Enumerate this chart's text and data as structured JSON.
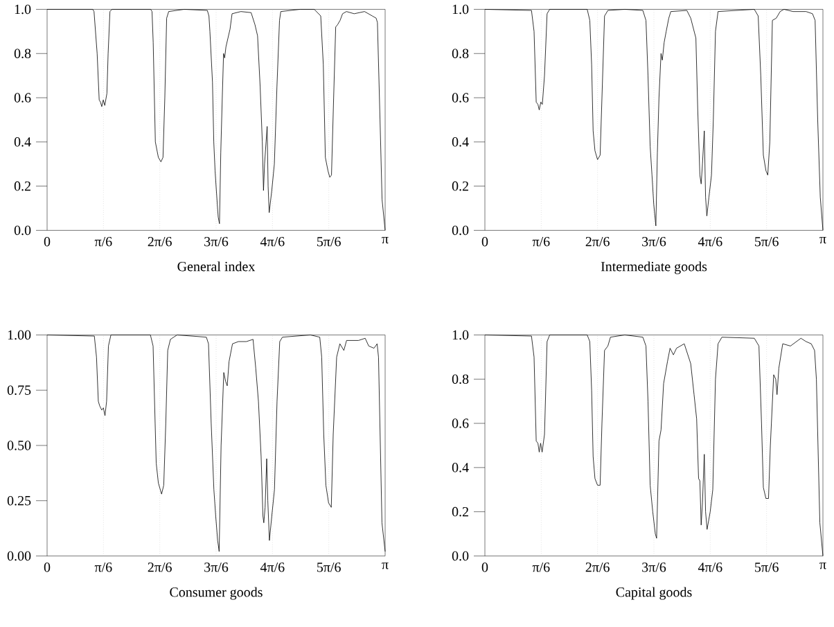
{
  "chart_data": [
    {
      "type": "line",
      "title": "General index",
      "color": "#000000",
      "x": [
        0,
        0.424,
        0.436,
        0.465,
        0.484,
        0.496,
        0.508,
        0.522,
        0.536,
        0.556,
        0.567,
        0.584,
        0.603,
        0.963,
        0.975,
        0.986,
        1.006,
        1.034,
        1.058,
        1.077,
        1.094,
        1.111,
        1.13,
        1.274,
        1.489,
        1.504,
        1.513,
        1.537,
        1.549,
        1.561,
        1.573,
        1.59,
        1.602,
        1.614,
        1.628,
        1.64,
        1.65,
        1.662,
        1.681,
        1.7,
        1.719,
        1.801,
        1.896,
        1.932,
        1.956,
        1.98,
        2.0,
        2.011,
        2.021,
        2.035,
        2.045,
        2.054,
        2.064,
        2.088,
        2.112,
        2.136,
        2.16,
        2.172,
        2.351,
        2.483,
        2.543,
        2.567,
        2.586,
        2.61,
        2.627,
        2.643,
        2.663,
        2.682,
        2.699,
        2.723,
        2.746,
        2.782,
        2.854,
        2.95,
        3.022,
        3.058,
        3.07,
        3.094,
        3.113,
        3.1416
      ],
      "values": [
        1,
        1,
        0.99,
        0.8,
        0.59,
        0.58,
        0.56,
        0.59,
        0.565,
        0.62,
        0.8,
        0.99,
        1,
        1,
        0.99,
        0.85,
        0.4,
        0.33,
        0.31,
        0.33,
        0.6,
        0.96,
        0.99,
        1,
        0.995,
        0.97,
        0.9,
        0.67,
        0.4,
        0.27,
        0.18,
        0.06,
        0.03,
        0.35,
        0.6,
        0.8,
        0.78,
        0.83,
        0.87,
        0.91,
        0.98,
        0.99,
        0.985,
        0.93,
        0.88,
        0.65,
        0.4,
        0.18,
        0.3,
        0.4,
        0.47,
        0.2,
        0.08,
        0.18,
        0.3,
        0.65,
        0.95,
        0.99,
        1,
        1,
        0.97,
        0.75,
        0.33,
        0.27,
        0.24,
        0.25,
        0.6,
        0.92,
        0.93,
        0.95,
        0.98,
        0.99,
        0.98,
        0.99,
        0.97,
        0.96,
        0.94,
        0.5,
        0.14,
        0
      ],
      "xlim": [
        0,
        3.1416
      ],
      "xticks": [
        0,
        {
          "value": 0.5236,
          "label": "π/6"
        },
        {
          "value": 1.0472,
          "label": "2π/6"
        },
        {
          "value": 1.5708,
          "label": "3π/6"
        },
        {
          "value": 2.0944,
          "label": "4π/6"
        },
        {
          "value": 2.618,
          "label": "5π/6"
        },
        {
          "value": 3.1416,
          "label": "π"
        }
      ],
      "ylim": [
        0,
        1
      ],
      "yticks": [
        {
          "value": 0,
          "label": "0.0"
        },
        0.2,
        0.4,
        0.6,
        0.8,
        {
          "value": 1,
          "label": "1.0"
        }
      ],
      "ref_lines": [
        {
          "axis": "x",
          "value": 0.5236,
          "color": "#999999",
          "line_style": "dotted"
        },
        {
          "axis": "x",
          "value": 1.0472,
          "color": "#999999",
          "line_style": "dotted"
        },
        {
          "axis": "x",
          "value": 1.5708,
          "color": "#999999",
          "line_style": "dotted"
        },
        {
          "axis": "x",
          "value": 2.0944,
          "color": "#999999",
          "line_style": "dotted"
        },
        {
          "axis": "x",
          "value": 2.618,
          "color": "#999999",
          "line_style": "dotted"
        }
      ]
    },
    {
      "type": "line",
      "title": "Intermediate goods",
      "color": "#000000",
      "x": [
        0,
        0.433,
        0.457,
        0.477,
        0.493,
        0.505,
        0.52,
        0.534,
        0.554,
        0.578,
        0.602,
        0.951,
        0.975,
        0.992,
        1.006,
        1.023,
        1.047,
        1.071,
        1.088,
        1.112,
        1.143,
        1.3,
        1.468,
        1.497,
        1.516,
        1.536,
        1.553,
        1.569,
        1.589,
        1.603,
        1.618,
        1.637,
        1.649,
        1.666,
        1.685,
        1.709,
        1.728,
        1.877,
        1.913,
        1.961,
        1.978,
        1.998,
        2.01,
        2.022,
        2.039,
        2.051,
        2.063,
        2.082,
        2.106,
        2.123,
        2.143,
        2.167,
        2.504,
        2.54,
        2.564,
        2.588,
        2.612,
        2.629,
        2.648,
        2.672,
        2.708,
        2.744,
        2.78,
        2.864,
        2.985,
        3.045,
        3.069,
        3.093,
        3.117,
        3.1416
      ],
      "values": [
        1,
        0.995,
        0.9,
        0.58,
        0.57,
        0.545,
        0.58,
        0.57,
        0.7,
        0.98,
        1,
        1,
        0.95,
        0.75,
        0.45,
        0.36,
        0.32,
        0.34,
        0.6,
        0.97,
        0.995,
        1,
        0.995,
        0.95,
        0.7,
        0.38,
        0.25,
        0.12,
        0.02,
        0.35,
        0.6,
        0.8,
        0.77,
        0.85,
        0.9,
        0.96,
        0.99,
        0.995,
        0.96,
        0.87,
        0.55,
        0.25,
        0.21,
        0.3,
        0.45,
        0.15,
        0.065,
        0.15,
        0.25,
        0.5,
        0.9,
        0.99,
        1,
        0.97,
        0.7,
        0.34,
        0.27,
        0.25,
        0.4,
        0.95,
        0.96,
        0.99,
        1,
        0.99,
        0.99,
        0.98,
        0.95,
        0.5,
        0.15,
        0
      ],
      "xlim": [
        0,
        3.1416
      ],
      "xticks": [
        0,
        {
          "value": 0.5236,
          "label": "π/6"
        },
        {
          "value": 1.0472,
          "label": "2π/6"
        },
        {
          "value": 1.5708,
          "label": "3π/6"
        },
        {
          "value": 2.0944,
          "label": "4π/6"
        },
        {
          "value": 2.618,
          "label": "5π/6"
        },
        {
          "value": 3.1416,
          "label": "π"
        }
      ],
      "ylim": [
        0,
        1
      ],
      "yticks": [
        {
          "value": 0,
          "label": "0.0"
        },
        0.2,
        0.4,
        0.6,
        0.8,
        {
          "value": 1,
          "label": "1.0"
        }
      ],
      "ref_lines": [
        {
          "axis": "x",
          "value": 0.5236,
          "color": "#999999",
          "line_style": "dotted"
        },
        {
          "axis": "x",
          "value": 1.0472,
          "color": "#999999",
          "line_style": "dotted"
        },
        {
          "axis": "x",
          "value": 1.5708,
          "color": "#999999",
          "line_style": "dotted"
        },
        {
          "axis": "x",
          "value": 2.0944,
          "color": "#999999",
          "line_style": "dotted"
        },
        {
          "axis": "x",
          "value": 2.618,
          "color": "#999999",
          "line_style": "dotted"
        }
      ]
    },
    {
      "type": "line",
      "title": "Consumer goods",
      "color": "#000000",
      "x": [
        0,
        0.439,
        0.459,
        0.476,
        0.488,
        0.508,
        0.523,
        0.538,
        0.553,
        0.57,
        0.593,
        0.96,
        0.985,
        1.004,
        1.014,
        1.034,
        1.064,
        1.084,
        1.103,
        1.121,
        1.146,
        1.208,
        1.48,
        1.5,
        1.525,
        1.55,
        1.567,
        1.585,
        1.599,
        1.617,
        1.642,
        1.659,
        1.674,
        1.691,
        1.723,
        1.778,
        1.852,
        1.914,
        1.939,
        1.964,
        1.989,
        2.006,
        2.014,
        2.026,
        2.041,
        2.051,
        2.066,
        2.088,
        2.113,
        2.137,
        2.162,
        2.187,
        2.447,
        2.534,
        2.552,
        2.571,
        2.591,
        2.616,
        2.641,
        2.659,
        2.691,
        2.721,
        2.758,
        2.783,
        2.894,
        2.956,
        2.989,
        3.038,
        3.067,
        3.08,
        3.112,
        3.1416
      ],
      "values": [
        1,
        0.995,
        0.9,
        0.7,
        0.68,
        0.66,
        0.67,
        0.635,
        0.7,
        0.95,
        1,
        1,
        0.95,
        0.6,
        0.42,
        0.33,
        0.28,
        0.32,
        0.6,
        0.93,
        0.98,
        1,
        0.99,
        0.96,
        0.6,
        0.3,
        0.18,
        0.07,
        0.02,
        0.5,
        0.83,
        0.79,
        0.77,
        0.88,
        0.96,
        0.97,
        0.97,
        0.98,
        0.85,
        0.7,
        0.45,
        0.18,
        0.15,
        0.22,
        0.44,
        0.25,
        0.07,
        0.18,
        0.3,
        0.7,
        0.97,
        0.99,
        1,
        0.99,
        0.9,
        0.55,
        0.32,
        0.24,
        0.22,
        0.55,
        0.9,
        0.96,
        0.93,
        0.975,
        0.975,
        0.985,
        0.95,
        0.94,
        0.96,
        0.9,
        0.15,
        0.02
      ],
      "xlim": [
        0,
        3.1416
      ],
      "xticks": [
        0,
        {
          "value": 0.5236,
          "label": "π/6"
        },
        {
          "value": 1.0472,
          "label": "2π/6"
        },
        {
          "value": 1.5708,
          "label": "3π/6"
        },
        {
          "value": 2.0944,
          "label": "4π/6"
        },
        {
          "value": 2.618,
          "label": "5π/6"
        },
        {
          "value": 3.1416,
          "label": "π"
        }
      ],
      "ylim": [
        0,
        1
      ],
      "yticks": [
        {
          "value": 0,
          "label": "0.00"
        },
        0.25,
        {
          "value": 0.5,
          "label": "0.50"
        },
        0.75,
        {
          "value": 1,
          "label": "1.00"
        }
      ],
      "ref_lines": [
        {
          "axis": "x",
          "value": 0.5236,
          "color": "#999999",
          "line_style": "dotted"
        },
        {
          "axis": "x",
          "value": 1.0472,
          "color": "#999999",
          "line_style": "dotted"
        },
        {
          "axis": "x",
          "value": 1.5708,
          "color": "#999999",
          "line_style": "dotted"
        },
        {
          "axis": "x",
          "value": 2.0944,
          "color": "#999999",
          "line_style": "dotted"
        },
        {
          "axis": "x",
          "value": 2.618,
          "color": "#999999",
          "line_style": "dotted"
        }
      ]
    },
    {
      "type": "line",
      "title": "Capital goods",
      "color": "#000000",
      "x": [
        0,
        0.433,
        0.457,
        0.477,
        0.493,
        0.505,
        0.518,
        0.532,
        0.554,
        0.578,
        0.602,
        0.951,
        0.975,
        0.992,
        1.006,
        1.023,
        1.047,
        1.071,
        1.088,
        1.112,
        1.143,
        1.167,
        1.3,
        1.468,
        1.497,
        1.516,
        1.536,
        1.56,
        1.584,
        1.596,
        1.618,
        1.637,
        1.661,
        1.697,
        1.721,
        1.752,
        1.781,
        1.853,
        1.913,
        1.944,
        1.968,
        1.986,
        1.998,
        2.01,
        2.022,
        2.039,
        2.051,
        2.065,
        2.094,
        2.118,
        2.143,
        2.167,
        2.203,
        2.504,
        2.547,
        2.571,
        2.588,
        2.612,
        2.636,
        2.653,
        2.684,
        2.703,
        2.715,
        2.732,
        2.768,
        2.84,
        2.937,
        2.985,
        3.033,
        3.064,
        3.081,
        3.113,
        3.1416
      ],
      "values": [
        1,
        0.995,
        0.9,
        0.52,
        0.51,
        0.47,
        0.51,
        0.47,
        0.55,
        0.97,
        1,
        1,
        0.97,
        0.75,
        0.45,
        0.35,
        0.32,
        0.32,
        0.6,
        0.93,
        0.95,
        0.99,
        1,
        0.99,
        0.95,
        0.7,
        0.32,
        0.2,
        0.1,
        0.08,
        0.52,
        0.57,
        0.78,
        0.88,
        0.94,
        0.91,
        0.94,
        0.96,
        0.87,
        0.73,
        0.62,
        0.35,
        0.34,
        0.14,
        0.24,
        0.46,
        0.2,
        0.12,
        0.2,
        0.3,
        0.8,
        0.96,
        0.99,
        0.985,
        0.95,
        0.6,
        0.31,
        0.26,
        0.26,
        0.5,
        0.82,
        0.8,
        0.73,
        0.85,
        0.96,
        0.95,
        0.985,
        0.97,
        0.96,
        0.93,
        0.8,
        0.15,
        0
      ],
      "xlim": [
        0,
        3.1416
      ],
      "xticks": [
        0,
        {
          "value": 0.5236,
          "label": "π/6"
        },
        {
          "value": 1.0472,
          "label": "2π/6"
        },
        {
          "value": 1.5708,
          "label": "3π/6"
        },
        {
          "value": 2.0944,
          "label": "4π/6"
        },
        {
          "value": 2.618,
          "label": "5π/6"
        },
        {
          "value": 3.1416,
          "label": "π"
        }
      ],
      "ylim": [
        0,
        1
      ],
      "yticks": [
        {
          "value": 0,
          "label": "0.0"
        },
        0.2,
        0.4,
        0.6,
        0.8,
        {
          "value": 1,
          "label": "1.0"
        }
      ],
      "ref_lines": [
        {
          "axis": "x",
          "value": 0.5236,
          "color": "#999999",
          "line_style": "dotted"
        },
        {
          "axis": "x",
          "value": 1.0472,
          "color": "#999999",
          "line_style": "dotted"
        },
        {
          "axis": "x",
          "value": 1.5708,
          "color": "#999999",
          "line_style": "dotted"
        },
        {
          "axis": "x",
          "value": 2.0944,
          "color": "#999999",
          "line_style": "dotted"
        },
        {
          "axis": "x",
          "value": 2.618,
          "color": "#999999",
          "line_style": "dotted"
        }
      ]
    }
  ]
}
